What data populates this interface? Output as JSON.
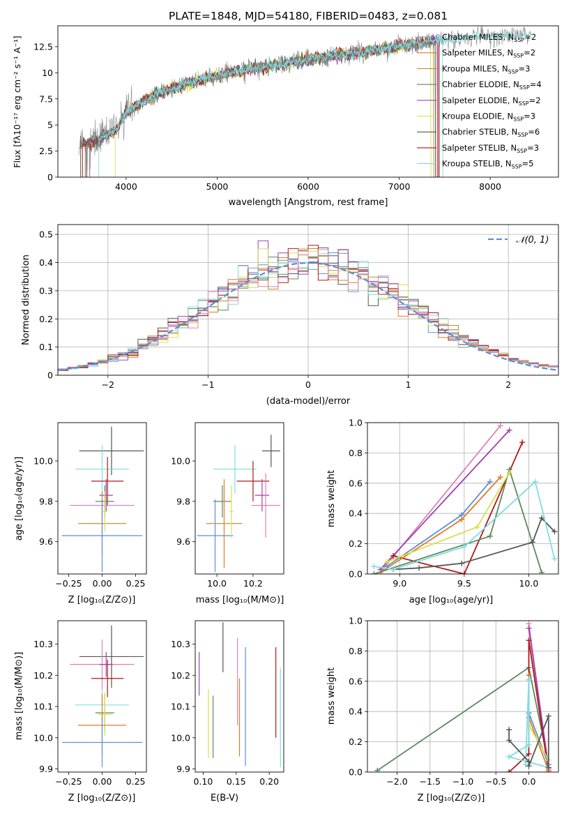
{
  "colors": {
    "chabrier_miles": "#5b8fd6",
    "salpeter_miles": "#e07b24",
    "kroupa_miles": "#c98a2a",
    "chabrier_elodie": "#5a8a5e",
    "salpeter_elodie": "#a040b0",
    "kroupa_elodie": "#d8e04a",
    "chabrier_stelib": "#555555",
    "salpeter_stelib": "#b01818",
    "kroupa_stelib": "#80dce0",
    "pink": "#e080b8",
    "normal_curve": "#5b8fd6",
    "observed": "#707070"
  },
  "chart_data": [
    {
      "id": "spectrum",
      "type": "line",
      "title": "PLATE=1848, MJD=54180, FIBERID=0483, z=0.081",
      "xlabel": "wavelength [Angstrom, rest frame]",
      "ylabel": "Flux [fλ10⁻¹⁷ erg cm⁻² s⁻¹ A⁻¹]",
      "xlim": [
        3250,
        8750
      ],
      "ylim": [
        0,
        14.5
      ],
      "xticks": [
        4000,
        5000,
        6000,
        7000,
        8000
      ],
      "yticks": [
        0.0,
        2.5,
        5.0,
        7.5,
        10.0,
        12.5
      ],
      "legend_position": "right",
      "legend": [
        {
          "label": "Chabrier MILES, N",
          "sub": "SSP",
          "suffix": "=2",
          "color_key": "chabrier_miles"
        },
        {
          "label": "Salpeter MILES, N",
          "sub": "SSP",
          "suffix": "=2",
          "color_key": "salpeter_miles"
        },
        {
          "label": "Kroupa MILES, N",
          "sub": "SSP",
          "suffix": "=3",
          "color_key": "kroupa_miles"
        },
        {
          "label": "Chabrier ELODIE, N",
          "sub": "SSP",
          "suffix": "=4",
          "color_key": "chabrier_elodie"
        },
        {
          "label": "Salpeter ELODIE, N",
          "sub": "SSP",
          "suffix": "=2",
          "color_key": "salpeter_elodie"
        },
        {
          "label": "Kroupa ELODIE, N",
          "sub": "SSP",
          "suffix": "=3",
          "color_key": "kroupa_elodie"
        },
        {
          "label": "Chabrier STELIB, N",
          "sub": "SSP",
          "suffix": "=6",
          "color_key": "chabrier_stelib"
        },
        {
          "label": "Salpeter STELIB, N",
          "sub": "SSP",
          "suffix": "=3",
          "color_key": "salpeter_stelib"
        },
        {
          "label": "Kroupa STELIB, N",
          "sub": "SSP",
          "suffix": "=5",
          "color_key": "kroupa_stelib"
        }
      ],
      "continuum": {
        "x": [
          3500,
          3700,
          3900,
          4000,
          4100,
          4300,
          4500,
          4800,
          5000,
          5200,
          5500,
          5800,
          6000,
          6300,
          6600,
          6900,
          7200,
          7500,
          7800,
          8100,
          8400
        ],
        "y": [
          3.0,
          3.6,
          4.6,
          6.2,
          6.9,
          7.8,
          8.4,
          9.3,
          9.7,
          10.1,
          10.5,
          11.0,
          11.3,
          11.6,
          12.0,
          12.4,
          12.8,
          13.2,
          13.4,
          13.5,
          13.6
        ]
      }
    },
    {
      "id": "residuals",
      "type": "histogram",
      "xlabel": "(data-model)/error",
      "ylabel": "Normed distribution",
      "xlim": [
        -2.5,
        2.5
      ],
      "ylim": [
        0,
        0.535
      ],
      "xticks": [
        -2,
        -1,
        0,
        1,
        2
      ],
      "yticks": [
        0.0,
        0.1,
        0.2,
        0.3,
        0.4,
        0.5
      ],
      "grid": true,
      "legend_position": "upper right",
      "legend_label": "𝒩(0, 1)",
      "bin_width": 0.1,
      "bin_start": -2.5
    },
    {
      "id": "age-vs-z",
      "type": "errorbar",
      "xlabel": "Z [log₁₀(Z/Z⊙)]",
      "ylabel": "age  [log₁₀(age/yr)]",
      "xlim": [
        -0.33,
        0.33
      ],
      "ylim": [
        9.44,
        10.19
      ],
      "xticks": [
        -0.25,
        0.0,
        0.25
      ],
      "xtick_labels": [
        "−0.25",
        "0.00",
        "0.25"
      ],
      "yticks": [
        9.6,
        9.8,
        10.0
      ],
      "ytick_labels": [
        "9.6",
        "9.8",
        "10.0"
      ],
      "points": [
        {
          "color_key": "chabrier_stelib",
          "x": 0.07,
          "xerr": 0.24,
          "y": 10.05,
          "yerr": 0.12
        },
        {
          "color_key": "kroupa_stelib",
          "x": 0.0,
          "xerr": 0.2,
          "y": 9.96,
          "yerr": 0.12
        },
        {
          "color_key": "salpeter_stelib",
          "x": 0.04,
          "xerr": 0.12,
          "y": 9.9,
          "yerr": 0.12
        },
        {
          "color_key": "salpeter_elodie",
          "x": 0.03,
          "xerr": 0.05,
          "y": 9.83,
          "yerr": 0.08
        },
        {
          "color_key": "chabrier_elodie",
          "x": 0.02,
          "xerr": 0.07,
          "y": 9.8,
          "yerr": 0.08
        },
        {
          "color_key": "pink",
          "x": 0.0,
          "xerr": 0.24,
          "y": 9.78,
          "yerr": 0.06
        },
        {
          "color_key": "salpeter_miles",
          "x": 0.0,
          "xerr": 0.18,
          "y": 9.69,
          "yerr": 0.16
        },
        {
          "color_key": "chabrier_miles",
          "x": 0.0,
          "xerr": 0.3,
          "y": 9.63,
          "yerr": 0.18
        },
        {
          "color_key": "kroupa_elodie",
          "x": 0.02,
          "xerr": 0.02,
          "y": 9.75,
          "yerr": 0.1
        }
      ]
    },
    {
      "id": "age-vs-mass",
      "type": "errorbar",
      "xlabel": "mass [log₁₀(M/M⊙)]",
      "ylabel": "",
      "xlim": [
        9.88,
        10.37
      ],
      "ylim": [
        9.44,
        10.19
      ],
      "xticks": [
        10.0,
        10.2
      ],
      "xtick_labels": [
        "10.0",
        "10.2"
      ],
      "yticks": [
        9.6,
        9.8,
        10.0
      ],
      "ytick_labels": [
        "9.6",
        "9.8",
        "10.0"
      ],
      "points": [
        {
          "color_key": "chabrier_stelib",
          "x": 10.3,
          "xerr": 0.05,
          "y": 10.05,
          "yerr": 0.08
        },
        {
          "color_key": "kroupa_stelib",
          "x": 10.1,
          "xerr": 0.12,
          "y": 9.96,
          "yerr": 0.12
        },
        {
          "color_key": "salpeter_stelib",
          "x": 10.2,
          "xerr": 0.09,
          "y": 9.9,
          "yerr": 0.1
        },
        {
          "color_key": "salpeter_elodie",
          "x": 10.25,
          "xerr": 0.04,
          "y": 9.83,
          "yerr": 0.08
        },
        {
          "color_key": "chabrier_elodie",
          "x": 10.03,
          "xerr": 0.05,
          "y": 9.8,
          "yerr": 0.08
        },
        {
          "color_key": "pink",
          "x": 10.27,
          "xerr": 0.08,
          "y": 9.78,
          "yerr": 0.16
        },
        {
          "color_key": "salpeter_miles",
          "x": 10.04,
          "xerr": 0.1,
          "y": 9.69,
          "yerr": 0.22
        },
        {
          "color_key": "chabrier_miles",
          "x": 9.99,
          "xerr": 0.1,
          "y": 9.63,
          "yerr": 0.18
        },
        {
          "color_key": "kroupa_elodie",
          "x": 10.08,
          "xerr": 0.01,
          "y": 9.75,
          "yerr": 0.13
        }
      ]
    },
    {
      "id": "weight-vs-age",
      "type": "line",
      "xlabel": "age  [log₁₀(age/yr)]",
      "ylabel": "mass weight",
      "xlim": [
        8.75,
        10.23
      ],
      "ylim": [
        0,
        1.0
      ],
      "xticks": [
        9.0,
        9.5,
        10.0
      ],
      "xtick_labels": [
        "9.0",
        "9.5",
        "10.0"
      ],
      "yticks": [
        0.0,
        0.2,
        0.4,
        0.6,
        0.8,
        1.0
      ],
      "ytick_labels": [
        "0.0",
        "0.2",
        "0.4",
        "0.6",
        "0.8",
        "1.0"
      ],
      "grid": true,
      "series": [
        {
          "color_key": "pink",
          "points": [
            [
              8.85,
              0.01
            ],
            [
              9.78,
              0.98
            ]
          ]
        },
        {
          "color_key": "salpeter_elodie",
          "points": [
            [
              8.85,
              0.03
            ],
            [
              9.85,
              0.95
            ]
          ]
        },
        {
          "color_key": "salpeter_stelib",
          "points": [
            [
              8.95,
              0.12
            ],
            [
              9.5,
              0.0
            ],
            [
              9.95,
              0.87
            ]
          ]
        },
        {
          "color_key": "chabrier_miles",
          "points": [
            [
              8.9,
              0.05
            ],
            [
              9.48,
              0.39
            ],
            [
              9.7,
              0.61
            ]
          ]
        },
        {
          "color_key": "salpeter_miles",
          "points": [
            [
              8.85,
              0.01
            ],
            [
              9.48,
              0.36
            ],
            [
              9.78,
              0.64
            ]
          ]
        },
        {
          "color_key": "chabrier_elodie",
          "points": [
            [
              8.8,
              0.0
            ],
            [
              9.7,
              0.25
            ],
            [
              9.85,
              0.69
            ],
            [
              10.1,
              0.01
            ]
          ]
        },
        {
          "color_key": "kroupa_elodie",
          "points": [
            [
              8.9,
              0.08
            ],
            [
              9.6,
              0.31
            ],
            [
              9.85,
              0.67
            ]
          ]
        },
        {
          "color_key": "chabrier_stelib",
          "points": [
            [
              8.95,
              0.03
            ],
            [
              9.15,
              0.04
            ],
            [
              9.48,
              0.07
            ],
            [
              10.03,
              0.21
            ],
            [
              10.1,
              0.37
            ],
            [
              10.2,
              0.28
            ]
          ]
        },
        {
          "color_key": "kroupa_stelib",
          "points": [
            [
              8.8,
              0.05
            ],
            [
              8.95,
              0.03
            ],
            [
              9.5,
              0.18
            ],
            [
              10.05,
              0.61
            ],
            [
              10.2,
              0.1
            ]
          ]
        }
      ]
    },
    {
      "id": "mass-vs-z",
      "type": "errorbar",
      "xlabel": "Z [log₁₀(Z/Z⊙)]",
      "ylabel": "mass [log₁₀(M/M⊙)]",
      "xlim": [
        -0.33,
        0.33
      ],
      "ylim": [
        9.89,
        10.375
      ],
      "xticks": [
        -0.25,
        0.0,
        0.25
      ],
      "xtick_labels": [
        "−0.25",
        "0.00",
        "0.25"
      ],
      "yticks": [
        9.9,
        10.0,
        10.1,
        10.2,
        10.3
      ],
      "ytick_labels": [
        "9.9",
        "10.0",
        "10.1",
        "10.2",
        "10.3"
      ],
      "points": [
        {
          "color_key": "chabrier_stelib",
          "x": 0.07,
          "xerr": 0.24,
          "y": 10.26,
          "yerr": 0.1
        },
        {
          "color_key": "pink",
          "x": 0.0,
          "xerr": 0.24,
          "y": 10.235,
          "yerr": 0.08
        },
        {
          "color_key": "salpeter_elodie",
          "x": 0.03,
          "xerr": 0.05,
          "y": 10.235,
          "yerr": 0.04
        },
        {
          "color_key": "salpeter_stelib",
          "x": 0.04,
          "xerr": 0.12,
          "y": 10.19,
          "yerr": 0.06
        },
        {
          "color_key": "kroupa_stelib",
          "x": 0.0,
          "xerr": 0.2,
          "y": 10.105,
          "yerr": 0.05
        },
        {
          "color_key": "chabrier_elodie",
          "x": 0.02,
          "xerr": 0.07,
          "y": 10.08,
          "yerr": 0.06
        },
        {
          "color_key": "kroupa_elodie",
          "x": 0.02,
          "xerr": 0.05,
          "y": 10.075,
          "yerr": 0.07
        },
        {
          "color_key": "salpeter_miles",
          "x": 0.0,
          "xerr": 0.18,
          "y": 10.04,
          "yerr": 0.1
        },
        {
          "color_key": "chabrier_miles",
          "x": 0.0,
          "xerr": 0.3,
          "y": 9.985,
          "yerr": 0.08
        }
      ]
    },
    {
      "id": "mass-vs-ebv",
      "type": "errorbar",
      "xlabel": "E(B-V)",
      "ylabel": "",
      "xlim": [
        0.088,
        0.222
      ],
      "ylim": [
        9.89,
        10.375
      ],
      "xticks": [
        0.1,
        0.15,
        0.2
      ],
      "xtick_labels": [
        "0.10",
        "0.15",
        "0.20"
      ],
      "yticks": [
        9.9,
        10.0,
        10.1,
        10.2,
        10.3
      ],
      "ytick_labels": [
        "9.9",
        "10.0",
        "10.1",
        "10.2",
        "10.3"
      ],
      "points": [
        {
          "color_key": "salpeter_elodie",
          "x": 0.094,
          "xerr": 0,
          "y": 10.205,
          "yerr": 0.07
        },
        {
          "color_key": "kroupa_elodie",
          "x": 0.108,
          "xerr": 0,
          "y": 10.045,
          "yerr": 0.11
        },
        {
          "color_key": "chabrier_elodie",
          "x": 0.115,
          "xerr": 0,
          "y": 10.035,
          "yerr": 0.1
        },
        {
          "color_key": "chabrier_stelib",
          "x": 0.13,
          "xerr": 0,
          "y": 10.29,
          "yerr": 0.08
        },
        {
          "color_key": "pink",
          "x": 0.152,
          "xerr": 0,
          "y": 10.18,
          "yerr": 0.14
        },
        {
          "color_key": "salpeter_miles",
          "x": 0.155,
          "xerr": 0,
          "y": 10.065,
          "yerr": 0.125
        },
        {
          "color_key": "chabrier_miles",
          "x": 0.164,
          "xerr": 0,
          "y": 10.1,
          "yerr": 0.19
        },
        {
          "color_key": "salpeter_stelib",
          "x": 0.21,
          "xerr": 0,
          "y": 10.145,
          "yerr": 0.145
        },
        {
          "color_key": "kroupa_stelib",
          "x": 0.217,
          "xerr": 0,
          "y": 10.065,
          "yerr": 0.16
        }
      ]
    },
    {
      "id": "weight-vs-z",
      "type": "line",
      "xlabel": "Z [log₁₀(Z/Z⊙)]",
      "ylabel": "mass weight",
      "xlim": [
        -2.45,
        0.45
      ],
      "ylim": [
        0,
        1.0
      ],
      "xticks": [
        -2.0,
        -1.5,
        -1.0,
        -0.5,
        0.0
      ],
      "xtick_labels": [
        "−2.0",
        "−1.5",
        "−1.0",
        "−0.5",
        "0.0"
      ],
      "yticks": [
        0.0,
        0.2,
        0.4,
        0.6,
        0.8,
        1.0
      ],
      "ytick_labels": [
        "0.0",
        "0.2",
        "0.4",
        "0.6",
        "0.8",
        "1.0"
      ],
      "grid": true,
      "series": [
        {
          "color_key": "chabrier_elodie",
          "points": [
            [
              -2.3,
              0.01
            ],
            [
              0.0,
              0.69
            ],
            [
              0.3,
              0.05
            ]
          ]
        },
        {
          "color_key": "pink",
          "points": [
            [
              0.0,
              0.98
            ],
            [
              0.3,
              0.02
            ]
          ]
        },
        {
          "color_key": "salpeter_elodie",
          "points": [
            [
              0.0,
              0.95
            ],
            [
              0.3,
              0.03
            ]
          ]
        },
        {
          "color_key": "salpeter_stelib",
          "points": [
            [
              -0.3,
              0.0
            ],
            [
              0.0,
              0.12
            ],
            [
              0.0,
              0.87
            ],
            [
              0.3,
              0.0
            ]
          ]
        },
        {
          "color_key": "salpeter_miles",
          "points": [
            [
              0.0,
              0.64
            ],
            [
              0.0,
              0.36
            ],
            [
              0.3,
              0.01
            ]
          ]
        },
        {
          "color_key": "chabrier_miles",
          "points": [
            [
              0.0,
              0.61
            ],
            [
              0.0,
              0.39
            ],
            [
              0.3,
              0.05
            ]
          ]
        },
        {
          "color_key": "kroupa_elodie",
          "points": [
            [
              0.0,
              0.31
            ],
            [
              0.3,
              0.08
            ]
          ]
        },
        {
          "color_key": "kroupa_stelib",
          "points": [
            [
              -0.05,
              0.05
            ],
            [
              0.0,
              0.61
            ],
            [
              0.0,
              0.18
            ],
            [
              -0.3,
              0.1
            ],
            [
              0.3,
              0.03
            ]
          ]
        },
        {
          "color_key": "chabrier_stelib",
          "points": [
            [
              -0.3,
              0.28
            ],
            [
              -0.3,
              0.21
            ],
            [
              0.0,
              0.07
            ],
            [
              0.0,
              0.04
            ],
            [
              0.3,
              0.37
            ],
            [
              0.3,
              0.03
            ]
          ]
        }
      ]
    }
  ]
}
